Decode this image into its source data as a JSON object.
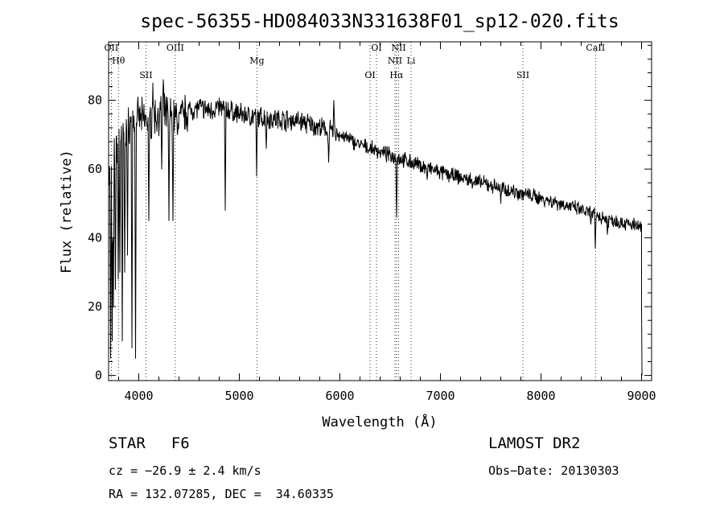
{
  "chart_data": {
    "type": "line",
    "title": "spec-56355-HD084033N331638F01_sp12-020.fits",
    "xlabel": "Wavelength (Å)",
    "ylabel": "Flux (relative)",
    "xlim": [
      3700,
      9100
    ],
    "ylim": [
      -1.5,
      97
    ],
    "x_ticks": [
      4000,
      5000,
      6000,
      7000,
      8000,
      9000
    ],
    "y_ticks": [
      0,
      20,
      40,
      60,
      80
    ],
    "grid": false,
    "legend": "none",
    "line_color": "#000000",
    "continuum": [
      [
        3700,
        58
      ],
      [
        3800,
        68
      ],
      [
        3900,
        73
      ],
      [
        4000,
        75
      ],
      [
        4100,
        74
      ],
      [
        4200,
        76
      ],
      [
        4300,
        76
      ],
      [
        4400,
        75
      ],
      [
        4500,
        77
      ],
      [
        4600,
        78
      ],
      [
        4700,
        77
      ],
      [
        4800,
        78
      ],
      [
        4900,
        77
      ],
      [
        5000,
        76
      ],
      [
        5200,
        75
      ],
      [
        5400,
        74.5
      ],
      [
        5600,
        74
      ],
      [
        5800,
        72
      ],
      [
        6000,
        70
      ],
      [
        6200,
        67
      ],
      [
        6400,
        65
      ],
      [
        6600,
        63
      ],
      [
        6800,
        61
      ],
      [
        7000,
        59
      ],
      [
        7200,
        57.5
      ],
      [
        7400,
        56
      ],
      [
        7600,
        54.5
      ],
      [
        7800,
        53
      ],
      [
        8000,
        51.5
      ],
      [
        8200,
        50
      ],
      [
        8400,
        48
      ],
      [
        8600,
        46
      ],
      [
        8800,
        44.5
      ],
      [
        9000,
        43
      ]
    ],
    "absorption_features": [
      [
        3720,
        5
      ],
      [
        3735,
        10
      ],
      [
        3750,
        20
      ],
      [
        3770,
        25
      ],
      [
        3798,
        28
      ],
      [
        3812,
        30
      ],
      [
        3835,
        10
      ],
      [
        3860,
        30
      ],
      [
        3889,
        35
      ],
      [
        3934,
        8
      ],
      [
        3968,
        5
      ],
      [
        4102,
        45
      ],
      [
        4227,
        60
      ],
      [
        4300,
        45
      ],
      [
        4340,
        45
      ],
      [
        4383,
        70
      ],
      [
        4861,
        48
      ],
      [
        5172,
        58
      ],
      [
        5270,
        66
      ],
      [
        5890,
        62
      ],
      [
        6563,
        46
      ],
      [
        6867,
        57
      ],
      [
        7600,
        50
      ],
      [
        8498,
        44
      ],
      [
        8542,
        37
      ],
      [
        8662,
        41
      ]
    ],
    "emission_features": [
      [
        5940,
        80
      ],
      [
        4140,
        85
      ],
      [
        4245,
        86
      ]
    ],
    "end_drop": [
      [
        9000,
        20
      ],
      [
        9005,
        0
      ]
    ],
    "line_markers": [
      {
        "label": "OII",
        "x": 3727
      },
      {
        "label": "Hθ",
        "x": 3798
      },
      {
        "label": "SII",
        "x": 4072
      },
      {
        "label": "OIII",
        "x": 4363
      },
      {
        "label": "Mg",
        "x": 5175
      },
      {
        "label": "OI",
        "x": 6300
      },
      {
        "label": "OI",
        "x": 6364
      },
      {
        "label": "NII",
        "x": 6548
      },
      {
        "label": "Hα",
        "x": 6563
      },
      {
        "label": "NII",
        "x": 6584
      },
      {
        "label": "Li",
        "x": 6708
      },
      {
        "label": "SII",
        "x": 7820
      },
      {
        "label": "CaII",
        "x": 8542
      }
    ]
  },
  "info": {
    "object_type": "STAR",
    "subclass": "F6",
    "survey": "LAMOST DR2",
    "cz": "cz = −26.9 ± 2.4 km/s",
    "obs_date": "Obs−Date: 20130303",
    "radec": "RA = 132.07285, DEC =  34.60335"
  }
}
